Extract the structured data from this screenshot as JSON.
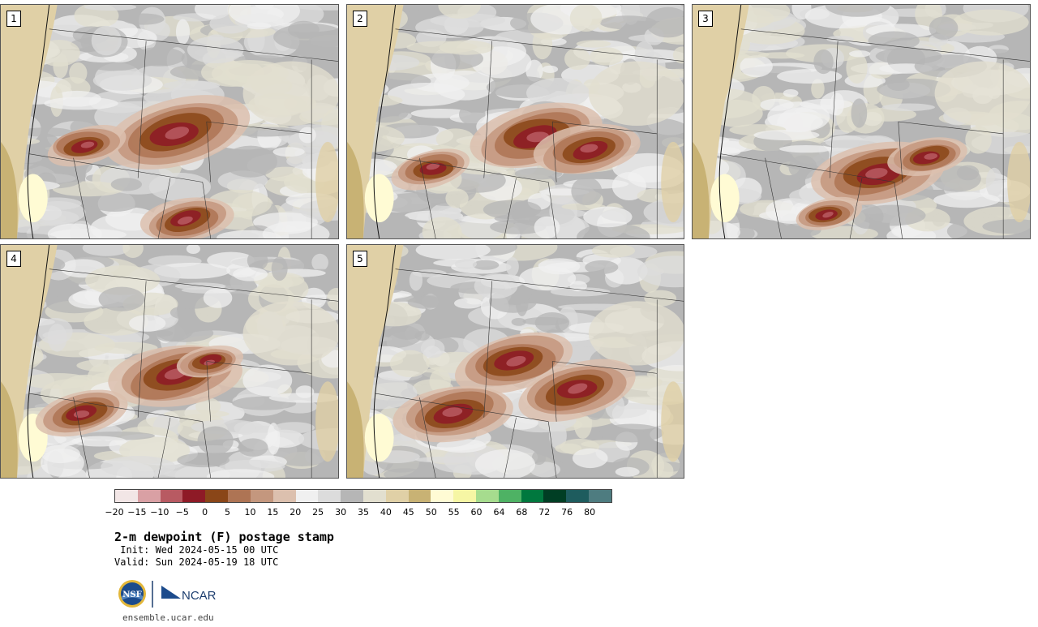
{
  "panels": [
    {
      "label": "1"
    },
    {
      "label": "2"
    },
    {
      "label": "3"
    },
    {
      "label": "4"
    },
    {
      "label": "5"
    }
  ],
  "colorbar": {
    "colors": [
      "#f2e6e6",
      "#d9a0a4",
      "#b85a62",
      "#8e1a26",
      "#8a4618",
      "#ae7454",
      "#c4977e",
      "#dcc0ae",
      "#f0f0f0",
      "#dcdcdc",
      "#b6b6b6",
      "#e2dfcf",
      "#e0d0a6",
      "#c8b274",
      "#fffbd4",
      "#f6f6a4",
      "#a6dc8e",
      "#4eb264",
      "#00783e",
      "#003e24",
      "#1e5c5e",
      "#4e7c80"
    ],
    "ticks": [
      "−20",
      "−15",
      "−10",
      "−5",
      "0",
      "5",
      "10",
      "15",
      "20",
      "25",
      "30",
      "35",
      "40",
      "45",
      "50",
      "55",
      "60",
      "64",
      "68",
      "72",
      "76",
      "80"
    ]
  },
  "title": "2-m dewpoint (F) postage stamp",
  "init": " Init: Wed 2024-05-15 00 UTC",
  "valid": "Valid: Sun 2024-05-19 18 UTC",
  "logos": {
    "left": "NSF",
    "right": "NCAR"
  },
  "website": "ensemble.ucar.edu"
}
